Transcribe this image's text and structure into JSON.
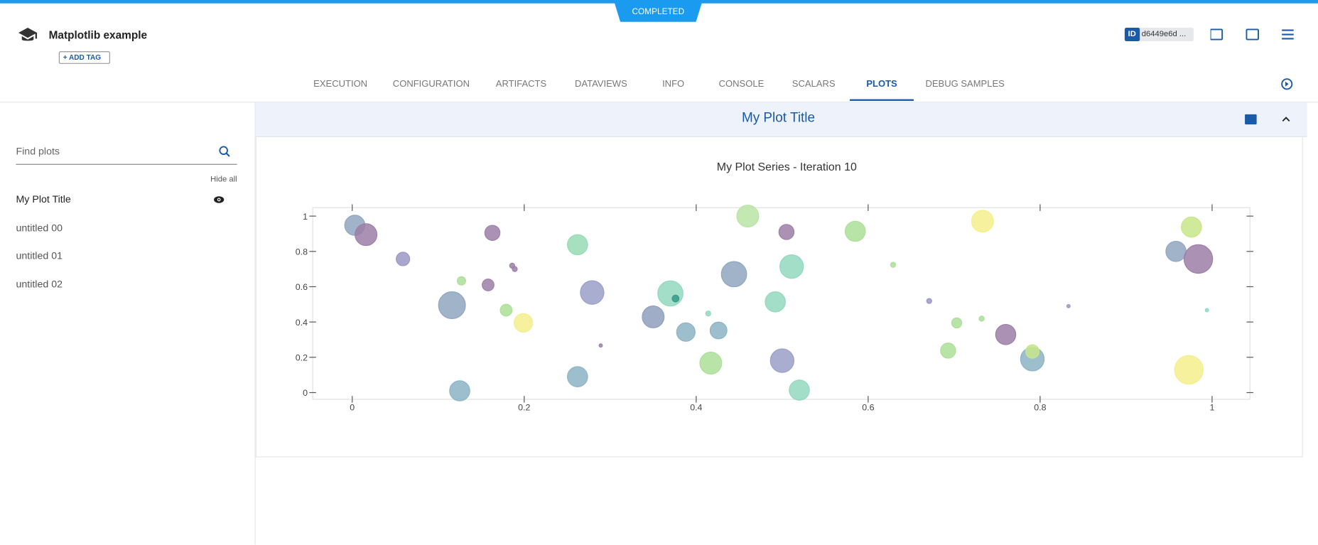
{
  "header": {
    "status": "COMPLETED",
    "title": "Matplotlib example",
    "add_tag": "ADD TAG",
    "id_label": "ID",
    "id_value": "d6449e6d ..."
  },
  "tabs": [
    "EXECUTION",
    "CONFIGURATION",
    "ARTIFACTS",
    "DATAVIEWS",
    "INFO",
    "CONSOLE",
    "SCALARS",
    "PLOTS",
    "DEBUG SAMPLES"
  ],
  "active_tab": 7,
  "sidebar": {
    "search_placeholder": "Find plots",
    "hide_all": "Hide all",
    "plots": [
      "My Plot Title",
      "untitled 00",
      "untitled 01",
      "untitled 02"
    ]
  },
  "panel": {
    "title": "My Plot Title"
  },
  "chart_data": {
    "type": "scatter",
    "title": "My Plot Series - Iteration 10",
    "x": [
      0.003,
      0.016,
      0.059,
      0.163,
      0.186,
      0.189,
      0.127,
      0.158,
      0.116,
      0.179,
      0.199,
      0.125,
      0.262,
      0.279,
      0.289,
      0.262,
      0.35,
      0.37,
      0.376,
      0.388,
      0.414,
      0.426,
      0.417,
      0.444,
      0.46,
      0.505,
      0.511,
      0.492,
      0.5,
      0.52,
      0.585,
      0.629,
      0.671,
      0.703,
      0.693,
      0.732,
      0.733,
      0.76,
      0.791,
      0.791,
      0.833,
      0.958,
      0.976,
      0.984,
      0.994,
      0.973
    ],
    "y": [
      0.948,
      0.895,
      0.757,
      0.905,
      0.719,
      0.7,
      0.633,
      0.61,
      0.495,
      0.467,
      0.395,
      0.01,
      0.838,
      0.567,
      0.267,
      0.09,
      0.429,
      0.562,
      0.533,
      0.343,
      0.448,
      0.352,
      0.167,
      0.671,
      1.0,
      0.91,
      0.714,
      0.514,
      0.181,
      0.014,
      0.914,
      0.724,
      0.519,
      0.395,
      0.238,
      0.419,
      0.971,
      0.329,
      0.19,
      0.233,
      0.49,
      0.8,
      0.938,
      0.757,
      0.467,
      0.129
    ],
    "sizes": [
      24,
      26,
      16,
      18,
      6,
      6,
      10,
      14,
      32,
      14,
      22,
      24,
      24,
      28,
      4,
      24,
      26,
      30,
      8,
      22,
      6,
      20,
      26,
      30,
      26,
      18,
      28,
      24,
      28,
      24,
      24,
      6,
      6,
      12,
      18,
      6,
      26,
      24,
      28,
      16,
      4,
      24,
      24,
      34,
      4,
      34
    ],
    "colors": [
      "#8fa6c0",
      "#9c7fa8",
      "#9a98c4",
      "#9c7fa8",
      "#9c7fa8",
      "#9c7fa8",
      "#acdf98",
      "#9c7fa8",
      "#8fa6c0",
      "#acdf98",
      "#f4ef8c",
      "#8cb4c4",
      "#98dab4",
      "#9aa0c8",
      "#9c7fa8",
      "#8cb4c4",
      "#8e9fbc",
      "#92d8be",
      "#3a9a8a",
      "#8cb4c4",
      "#92d8be",
      "#8cb4c4",
      "#acdf98",
      "#8fa6c0",
      "#b8e4a4",
      "#9c7fa8",
      "#92d8be",
      "#92d8be",
      "#9aa0c8",
      "#92d8be",
      "#acdf98",
      "#acdf98",
      "#9a98c4",
      "#acdf98",
      "#acdf98",
      "#acdf98",
      "#f4ef8c",
      "#9c7fa8",
      "#8cb4c4",
      "#c8e68a",
      "#9a98c4",
      "#8fa6c0",
      "#c8e68a",
      "#9c7fa8",
      "#92d8be",
      "#f4ef8c"
    ],
    "xlim": [
      -0.046,
      1.044
    ],
    "ylim": [
      -0.038,
      1.048
    ],
    "xticks": [
      0,
      0.2,
      0.4,
      0.6,
      0.8,
      1
    ],
    "yticks": [
      0,
      0.2,
      0.4,
      0.6,
      0.8,
      1
    ]
  }
}
